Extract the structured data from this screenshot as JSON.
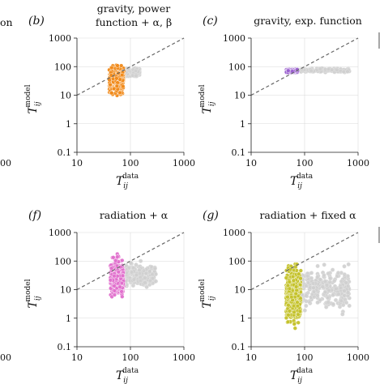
{
  "colors": {
    "grey_points": "#cfcfcf",
    "diagonal": "#666666",
    "grid": "#d9d9d9"
  },
  "partial_text": {
    "left_title_fragment": "on",
    "left_tick_fragment_top": "00",
    "left_tick_fragment_bottom": "00"
  },
  "chart_data": [
    {
      "type": "scatter",
      "panel_label": "(b)",
      "title_lines": [
        "gravity, power",
        "function + α, β"
      ],
      "xlabel_main": "T",
      "xlabel_sub": "ij",
      "xlabel_sup": "data",
      "ylabel_main": "T",
      "ylabel_sub": "ij",
      "ylabel_sup": "model",
      "xscale": "log",
      "yscale": "log",
      "xlim": [
        10,
        1000
      ],
      "ylim": [
        0.1,
        1000
      ],
      "x_ticks": [
        "10",
        "100",
        "1000"
      ],
      "y_ticks": [
        "0.1",
        "1",
        "10",
        "100",
        "1000"
      ],
      "grid": true,
      "diagonal": "y=x",
      "series": [
        {
          "color": "#f08a1a",
          "x_range": [
            40,
            75
          ],
          "y_range": [
            8,
            150
          ],
          "count": 320
        },
        {
          "color": "#cfcfcf",
          "x_range": [
            75,
            150
          ],
          "y_range": [
            40,
            100
          ],
          "count": 140
        }
      ]
    },
    {
      "type": "scatter",
      "panel_label": "(c)",
      "title_lines": [
        "gravity, exp. function"
      ],
      "xlabel_main": "T",
      "xlabel_sub": "ij",
      "xlabel_sup": "data",
      "ylabel_main": "T",
      "ylabel_sub": "ij",
      "ylabel_sup": "model",
      "xscale": "log",
      "yscale": "log",
      "xlim": [
        10,
        1000
      ],
      "ylim": [
        0.1,
        1000
      ],
      "x_ticks": [
        "10",
        "100",
        "1000"
      ],
      "y_ticks": [
        "0.1",
        "1",
        "10",
        "100",
        "1000"
      ],
      "grid": true,
      "diagonal": "y=x",
      "series": [
        {
          "color": "#9a5fcf",
          "x_range": [
            45,
            75
          ],
          "y_range": [
            55,
            85
          ],
          "count": 120
        },
        {
          "color": "#cfcfcf",
          "x_range": [
            75,
            700
          ],
          "y_range": [
            60,
            90
          ],
          "count": 150
        }
      ]
    },
    {
      "type": "scatter",
      "panel_label": "(f)",
      "title_lines": [
        "radiation + α"
      ],
      "xlabel_main": "T",
      "xlabel_sub": "ij",
      "xlabel_sup": "data",
      "ylabel_main": "T",
      "ylabel_sub": "ij",
      "ylabel_sup": "model",
      "xscale": "log",
      "yscale": "log",
      "xlim": [
        10,
        1000
      ],
      "ylim": [
        0.1,
        1000
      ],
      "x_ticks": [
        "10",
        "100",
        "1000"
      ],
      "y_ticks": [
        "0.1",
        "1",
        "10",
        "100",
        "1000"
      ],
      "grid": true,
      "diagonal": "y=x",
      "series": [
        {
          "color": "#e070cc",
          "x_range": [
            42,
            75
          ],
          "y_range": [
            3,
            250
          ],
          "count": 320
        },
        {
          "color": "#cfcfcf",
          "x_range": [
            75,
            300
          ],
          "y_range": [
            8,
            120
          ],
          "count": 170
        }
      ]
    },
    {
      "type": "scatter",
      "panel_label": "(g)",
      "title_lines": [
        "radiation + fixed α"
      ],
      "xlabel_main": "T",
      "xlabel_sub": "ij",
      "xlabel_sup": "data",
      "ylabel_main": "T",
      "ylabel_sub": "ij",
      "ylabel_sup": "model",
      "xscale": "log",
      "yscale": "log",
      "xlim": [
        10,
        1000
      ],
      "ylim": [
        0.1,
        1000
      ],
      "x_ticks": [
        "10",
        "100",
        "1000"
      ],
      "y_ticks": [
        "0.1",
        "1",
        "10",
        "100",
        "1000"
      ],
      "grid": true,
      "diagonal": "y=x",
      "series": [
        {
          "color": "#c4c22a",
          "x_range": [
            45,
            85
          ],
          "y_range": [
            0.3,
            150
          ],
          "count": 380
        },
        {
          "color": "#cfcfcf",
          "x_range": [
            85,
            700
          ],
          "y_range": [
            1,
            120
          ],
          "count": 260
        }
      ]
    }
  ]
}
